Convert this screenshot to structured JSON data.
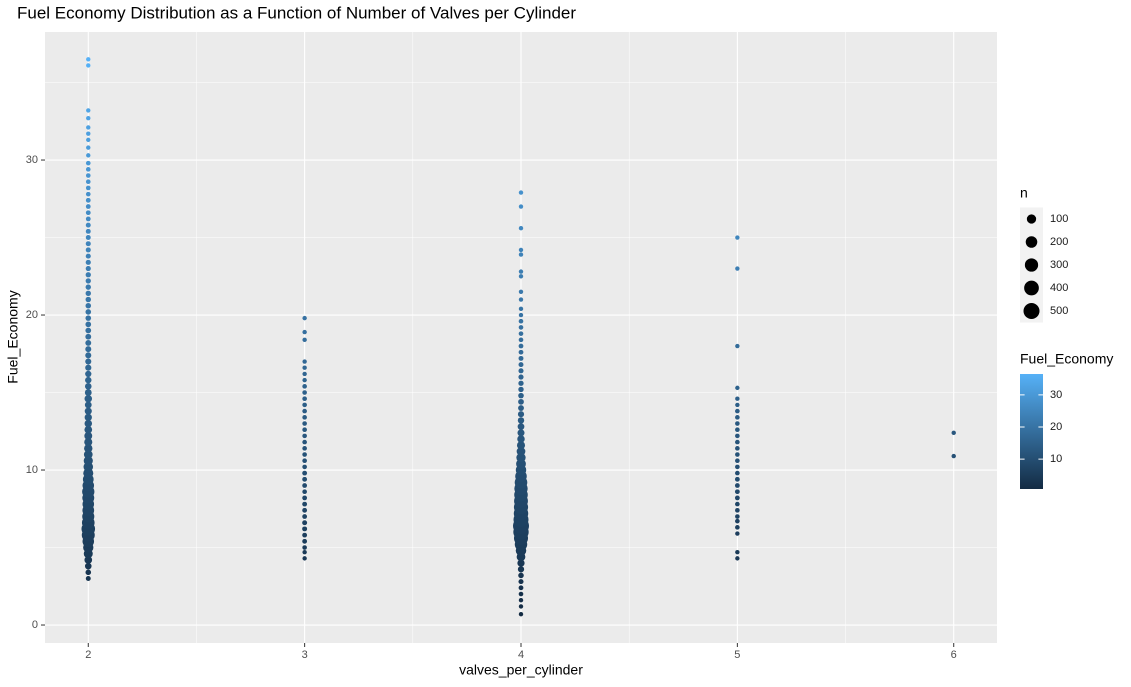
{
  "chart_data": {
    "type": "scatter",
    "title": "Fuel Economy Distribution as a Function of Number of Valves per Cylinder",
    "x_label": "valves_per_cylinder",
    "y_label": "Fuel_Economy",
    "xlim": [
      1.8,
      6.2
    ],
    "xticks": [
      2,
      3,
      4,
      5,
      6
    ],
    "ylim": [
      -1.16,
      38.26
    ],
    "yticks": [
      0,
      10,
      20,
      30
    ],
    "grid": true,
    "x": [
      2,
      2,
      2,
      2,
      2,
      2,
      2,
      2,
      2,
      2,
      2,
      2,
      2,
      2,
      2,
      2,
      2,
      2,
      2,
      2,
      2,
      2,
      2,
      2,
      2,
      2,
      2,
      2,
      2,
      2,
      2,
      2,
      2,
      2,
      2,
      2,
      2,
      2,
      2,
      2,
      2,
      2,
      2,
      2,
      2,
      2,
      2,
      2,
      2,
      2,
      2,
      2,
      2,
      2,
      2,
      2,
      2,
      2,
      2,
      2,
      2,
      2,
      2,
      2,
      2,
      2,
      2,
      2,
      2,
      2,
      2,
      2,
      2,
      2,
      2,
      2,
      2,
      3,
      3,
      3,
      3,
      3,
      3,
      3,
      3,
      3,
      3,
      3,
      3,
      3,
      3,
      3,
      3,
      3,
      3,
      3,
      3,
      3,
      3,
      3,
      3,
      3,
      3,
      3,
      3,
      3,
      3,
      3,
      3,
      3,
      3,
      3,
      3,
      4,
      4,
      4,
      4,
      4,
      4,
      4,
      4,
      4,
      4,
      4,
      4,
      4,
      4,
      4,
      4,
      4,
      4,
      4,
      4,
      4,
      4,
      4,
      4,
      4,
      4,
      4,
      4,
      4,
      4,
      4,
      4,
      4,
      4,
      4,
      4,
      4,
      4,
      4,
      4,
      4,
      4,
      4,
      4,
      4,
      4,
      4,
      4,
      4,
      4,
      4,
      4,
      4,
      4,
      4,
      4,
      4,
      4,
      4,
      5,
      5,
      5,
      5,
      5,
      5,
      5,
      5,
      5,
      5,
      5,
      5,
      5,
      5,
      5,
      5,
      5,
      5,
      5,
      5,
      5,
      5,
      5,
      5,
      5,
      5,
      5,
      5,
      5,
      6,
      6
    ],
    "y": [
      3.0,
      3.4,
      3.8,
      4.2,
      4.6,
      5.0,
      5.4,
      5.8,
      6.2,
      6.6,
      7.0,
      7.4,
      7.8,
      8.2,
      8.6,
      9.0,
      9.4,
      9.8,
      10.2,
      10.6,
      11.0,
      11.4,
      11.8,
      12.2,
      12.6,
      13.0,
      13.4,
      13.8,
      14.2,
      14.6,
      15.0,
      15.4,
      15.8,
      16.2,
      16.6,
      17.0,
      17.4,
      17.8,
      18.2,
      18.6,
      19.0,
      19.4,
      19.8,
      20.2,
      20.6,
      21.0,
      21.4,
      21.8,
      22.2,
      22.6,
      23.0,
      23.4,
      23.8,
      24.2,
      24.6,
      25.0,
      25.4,
      25.8,
      26.2,
      26.6,
      27.0,
      27.4,
      27.8,
      28.2,
      28.6,
      29.0,
      29.4,
      29.8,
      30.3,
      30.8,
      31.3,
      31.7,
      32.1,
      32.7,
      33.2,
      36.1,
      36.5,
      4.3,
      4.7,
      5.0,
      5.4,
      5.8,
      6.2,
      6.6,
      7.0,
      7.4,
      7.8,
      8.2,
      8.6,
      9.0,
      9.4,
      9.8,
      10.2,
      10.6,
      11.0,
      11.4,
      11.8,
      12.2,
      12.6,
      13.0,
      13.4,
      13.8,
      14.2,
      14.6,
      15.0,
      15.4,
      15.8,
      16.2,
      16.6,
      17.0,
      18.4,
      18.9,
      19.8,
      0.7,
      1.2,
      1.6,
      2.0,
      2.4,
      2.8,
      3.2,
      3.6,
      4.0,
      4.4,
      4.8,
      5.2,
      5.6,
      6.0,
      6.4,
      6.8,
      7.2,
      7.6,
      8.0,
      8.4,
      8.8,
      9.2,
      9.6,
      10.0,
      10.4,
      10.8,
      11.2,
      11.6,
      12.0,
      12.4,
      12.8,
      13.2,
      13.6,
      14.0,
      14.4,
      14.8,
      15.2,
      15.6,
      16.0,
      16.4,
      16.8,
      17.2,
      17.6,
      18.0,
      18.4,
      18.8,
      19.2,
      19.6,
      20.0,
      20.4,
      21.0,
      21.5,
      22.5,
      22.8,
      23.9,
      24.2,
      25.6,
      27.0,
      27.9,
      4.3,
      4.7,
      5.9,
      6.3,
      6.7,
      7.0,
      7.4,
      7.8,
      8.2,
      8.6,
      9.0,
      9.4,
      9.8,
      10.2,
      10.6,
      11.0,
      11.4,
      11.8,
      12.2,
      12.6,
      13.0,
      13.4,
      13.8,
      14.2,
      14.6,
      15.3,
      18.0,
      23.0,
      25.0,
      10.9,
      12.4
    ],
    "n": [
      4,
      10,
      25,
      50,
      90,
      140,
      200,
      280,
      320,
      260,
      230,
      210,
      200,
      220,
      240,
      200,
      160,
      130,
      110,
      95,
      80,
      70,
      60,
      55,
      50,
      45,
      40,
      35,
      30,
      45,
      30,
      25,
      22,
      20,
      18,
      17,
      16,
      15,
      14,
      13,
      12,
      11,
      10,
      10,
      9,
      9,
      8,
      8,
      7,
      7,
      6,
      6,
      5,
      5,
      5,
      4,
      4,
      4,
      3,
      3,
      3,
      3,
      2,
      2,
      2,
      2,
      2,
      2,
      1,
      1,
      1,
      1,
      1,
      1,
      1,
      1,
      1,
      1,
      1,
      2,
      3,
      3,
      4,
      4,
      3,
      3,
      3,
      3,
      2,
      3,
      3,
      3,
      2,
      2,
      2,
      2,
      2,
      2,
      2,
      2,
      2,
      2,
      2,
      2,
      2,
      2,
      1,
      1,
      1,
      1,
      1,
      1,
      1,
      1,
      1,
      1,
      2,
      3,
      5,
      10,
      20,
      40,
      80,
      150,
      250,
      350,
      450,
      500,
      420,
      380,
      360,
      340,
      320,
      300,
      260,
      200,
      150,
      120,
      100,
      80,
      60,
      45,
      35,
      28,
      22,
      18,
      14,
      12,
      10,
      8,
      7,
      6,
      5,
      4,
      4,
      3,
      3,
      2,
      2,
      2,
      2,
      1,
      1,
      1,
      1,
      1,
      1,
      1,
      1,
      1,
      1,
      1,
      1,
      1,
      1,
      2,
      2,
      2,
      2,
      2,
      3,
      3,
      3,
      3,
      2,
      2,
      2,
      2,
      2,
      2,
      2,
      2,
      2,
      2,
      2,
      1,
      1,
      1,
      1,
      1,
      1,
      1,
      1
    ],
    "size_title": "n",
    "size_breaks": [
      100,
      200,
      300,
      400,
      500
    ],
    "color_title": "Fuel_Economy",
    "color_low": "#132B43",
    "color_high": "#56B1F7",
    "color_limits": [
      0.7,
      36.5
    ],
    "color_ticks": [
      10,
      20,
      30
    ]
  }
}
